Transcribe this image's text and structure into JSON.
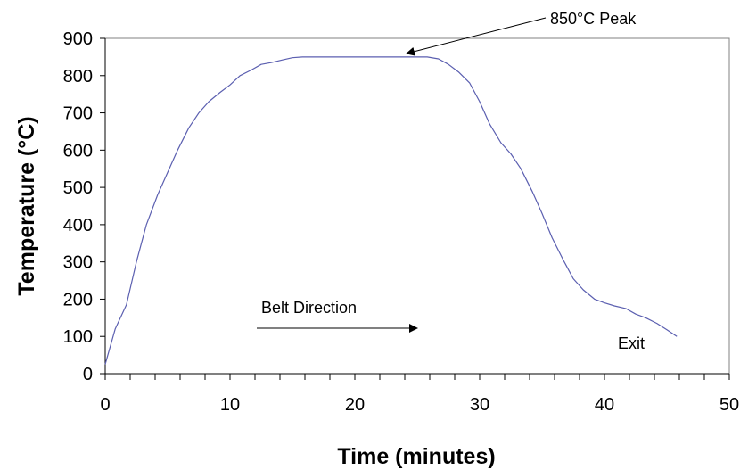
{
  "chart_data": {
    "type": "line",
    "title": "",
    "xlabel": "Time (minutes)",
    "ylabel": "Temperature (°C)",
    "xlim": [
      0,
      50
    ],
    "ylim": [
      0,
      900
    ],
    "x_ticks": [
      0,
      10,
      20,
      30,
      40,
      50
    ],
    "y_ticks": [
      0,
      100,
      200,
      300,
      400,
      500,
      600,
      700,
      800,
      900
    ],
    "grid": false,
    "line_color": "#5b5fb0",
    "series": [
      {
        "x": [
          0,
          0.8,
          1.7,
          2.5,
          3.3,
          4.2,
          5.0,
          5.8,
          6.7,
          7.5,
          8.3,
          9.2,
          10.0,
          10.8,
          11.7,
          12.5,
          13.3,
          14.2,
          15.0,
          15.8,
          16.7,
          18.3,
          20.0,
          21.7,
          23.3,
          25.0,
          25.8,
          26.7,
          27.5,
          28.3,
          29.2,
          30.0,
          30.8,
          31.7,
          32.5,
          33.3,
          34.2,
          35.0,
          35.8,
          36.7,
          37.5,
          38.3,
          39.2,
          40.0,
          40.8,
          41.7,
          42.5,
          43.3,
          44.2,
          45.0,
          45.8
        ],
        "y": [
          25,
          120,
          185,
          300,
          400,
          480,
          540,
          600,
          660,
          700,
          730,
          755,
          775,
          800,
          815,
          830,
          835,
          842,
          848,
          850,
          850,
          850,
          850,
          850,
          850,
          850,
          850,
          845,
          830,
          810,
          780,
          730,
          670,
          620,
          590,
          550,
          490,
          430,
          365,
          305,
          255,
          225,
          200,
          190,
          182,
          175,
          160,
          150,
          135,
          118,
          100
        ]
      }
    ],
    "annotations": [
      {
        "id": "peak",
        "text": "850°C Peak"
      },
      {
        "id": "belt",
        "text": "Belt Direction"
      },
      {
        "id": "exit",
        "text": "Exit"
      }
    ]
  }
}
